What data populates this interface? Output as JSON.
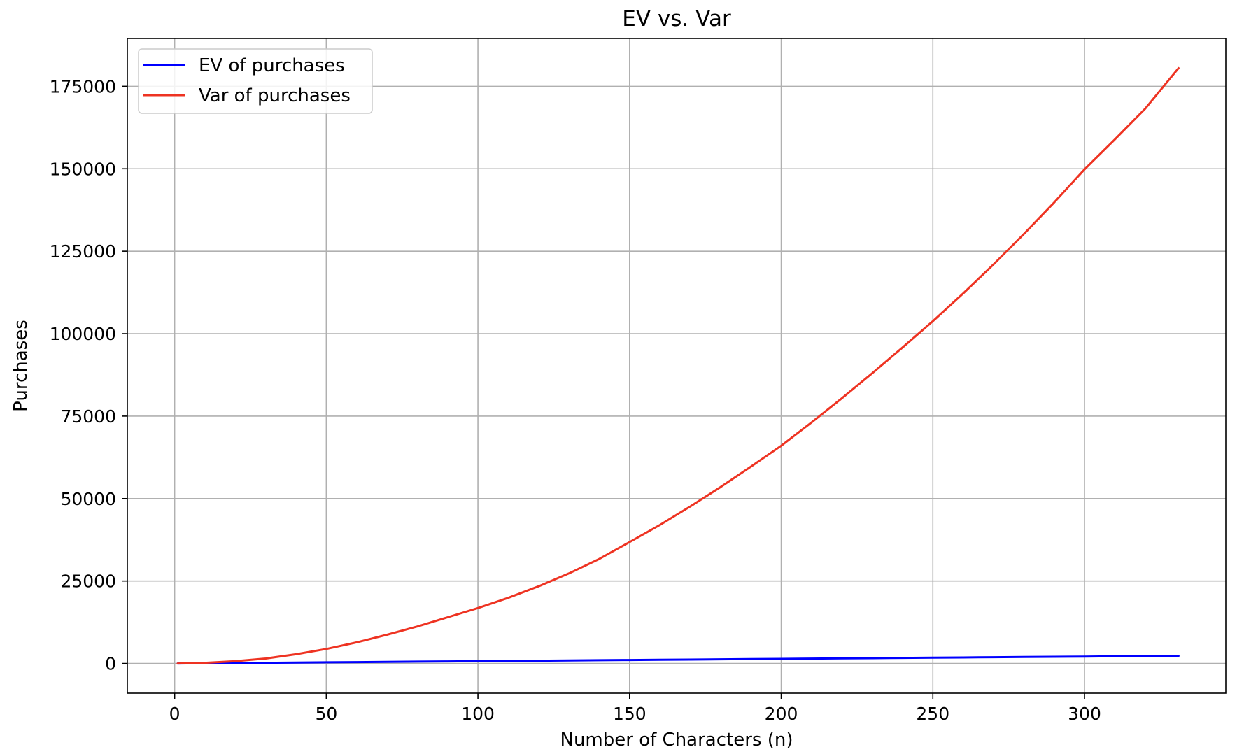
{
  "chart_data": {
    "type": "line",
    "title": "EV vs. Var",
    "xlabel": "Number of Characters (n)",
    "ylabel": "Purchases",
    "xlim": [
      -15.6,
      346.6
    ],
    "ylim": [
      -9000,
      189500
    ],
    "xticks": [
      0,
      50,
      100,
      150,
      200,
      250,
      300
    ],
    "yticks": [
      0,
      25000,
      50000,
      75000,
      100000,
      125000,
      150000,
      175000
    ],
    "grid": true,
    "legend_position": "top-left",
    "x": [
      1,
      10,
      20,
      30,
      40,
      50,
      60,
      70,
      80,
      90,
      100,
      110,
      120,
      130,
      140,
      150,
      160,
      170,
      180,
      190,
      200,
      210,
      220,
      230,
      240,
      250,
      260,
      270,
      280,
      290,
      300,
      310,
      320,
      331
    ],
    "series": [
      {
        "name": "EV of purchases",
        "color": "#0000ff",
        "values": [
          0,
          65,
          140,
          210,
          280,
          350,
          420,
          490,
          560,
          630,
          700,
          770,
          840,
          910,
          980,
          1050,
          1120,
          1190,
          1260,
          1330,
          1400,
          1470,
          1540,
          1610,
          1680,
          1750,
          1820,
          1890,
          1960,
          2030,
          2100,
          2170,
          2240,
          2310
        ]
      },
      {
        "name": "Var of purchases",
        "color": "#ee3322",
        "values": [
          0,
          200,
          700,
          1500,
          2800,
          4400,
          6400,
          8700,
          11200,
          14000,
          16800,
          19900,
          23400,
          27300,
          31700,
          36800,
          42000,
          47600,
          53500,
          59700,
          66000,
          73100,
          80400,
          88000,
          95800,
          103800,
          112200,
          121000,
          130200,
          139800,
          149800,
          158900,
          168200,
          180500
        ]
      }
    ]
  }
}
